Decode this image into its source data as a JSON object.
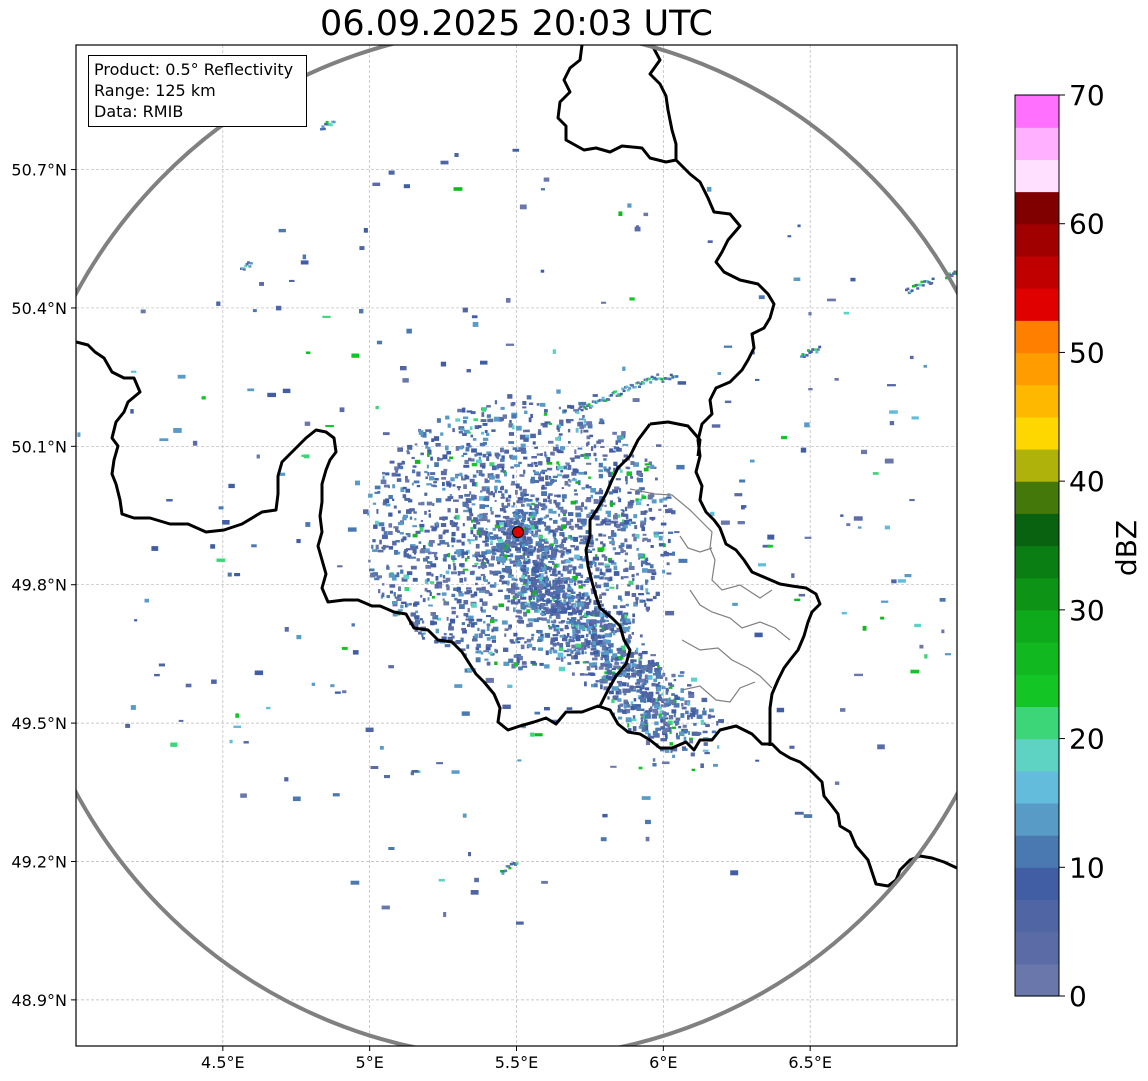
{
  "title": "06.09.2025 20:03 UTC",
  "info": {
    "product": "Product: 0.5° Reflectivity",
    "range": "Range: 125 km",
    "data": "Data: RMIB"
  },
  "map": {
    "lon_range": [
      4.0,
      7.0
    ],
    "lat_range": [
      48.8,
      50.97
    ],
    "radar_site": {
      "lon": 5.505,
      "lat": 49.914,
      "color": "#e00000"
    },
    "range_ring_color": "#808080",
    "grid": true,
    "x_ticks": [
      {
        "value": 4.5,
        "label": "4.5°E"
      },
      {
        "value": 5.0,
        "label": "5°E"
      },
      {
        "value": 5.5,
        "label": "5.5°E"
      },
      {
        "value": 6.0,
        "label": "6°E"
      },
      {
        "value": 6.5,
        "label": "6.5°E"
      }
    ],
    "y_ticks": [
      {
        "value": 48.9,
        "label": "48.9°N"
      },
      {
        "value": 49.2,
        "label": "49.2°N"
      },
      {
        "value": 49.5,
        "label": "49.5°N"
      },
      {
        "value": 49.8,
        "label": "49.8°N"
      },
      {
        "value": 50.1,
        "label": "50.1°N"
      },
      {
        "value": 50.4,
        "label": "50.4°N"
      },
      {
        "value": 50.7,
        "label": "50.7°N"
      }
    ]
  },
  "colorbar": {
    "label": "dBZ",
    "min": 0,
    "max": 70,
    "step": 2.5,
    "ticks": [
      {
        "value": 0,
        "label": "0"
      },
      {
        "value": 10,
        "label": "10"
      },
      {
        "value": 20,
        "label": "20"
      },
      {
        "value": 30,
        "label": "30"
      },
      {
        "value": 40,
        "label": "40"
      },
      {
        "value": 50,
        "label": "50"
      },
      {
        "value": 60,
        "label": "60"
      },
      {
        "value": 70,
        "label": "70"
      }
    ],
    "colors": [
      "#6a77ab",
      "#5a6ba6",
      "#4f65a4",
      "#415ea4",
      "#4a78b1",
      "#589bc7",
      "#64bcdc",
      "#5ed2c3",
      "#3cd577",
      "#13c525",
      "#11b81f",
      "#0faa1b",
      "#0d9417",
      "#0b7e13",
      "#08620f",
      "#44780a",
      "#aeb20a",
      "#ffd700",
      "#ffb800",
      "#ff9c00",
      "#ff7f00",
      "#e00000",
      "#c00000",
      "#a00000",
      "#800000",
      "#ffe0ff",
      "#ffb0ff",
      "#ff70ff",
      "#f036f0"
    ]
  }
}
